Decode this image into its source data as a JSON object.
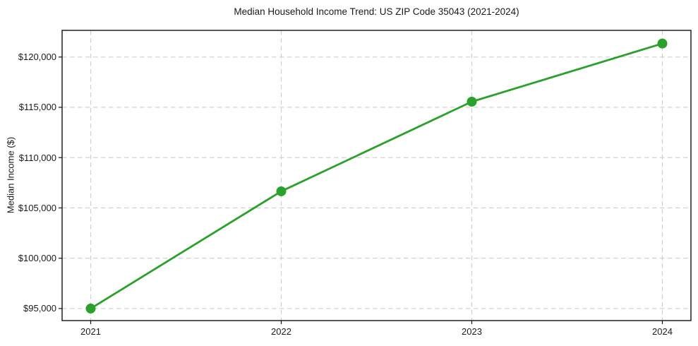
{
  "chart_data": {
    "type": "line",
    "title": "Median Household Income Trend: US ZIP Code 35043 (2021-2024)",
    "xlabel": "",
    "ylabel": "Median Income ($)",
    "x": [
      2021,
      2022,
      2023,
      2024
    ],
    "xtick_labels": [
      "2021",
      "2022",
      "2023",
      "2024"
    ],
    "series": [
      {
        "name": "Median Household Income",
        "values": [
          95000,
          106650,
          115560,
          121340
        ],
        "color": "#2ca02c",
        "marker": "circle"
      }
    ],
    "xlim": [
      2020.85,
      2024.15
    ],
    "ylim": [
      93800,
      122650
    ],
    "yticks": [
      95000,
      100000,
      105000,
      110000,
      115000,
      120000
    ],
    "ytick_labels": [
      "$95,000",
      "$100,000",
      "$105,000",
      "$110,000",
      "$115,000",
      "$120,000"
    ],
    "grid": "both",
    "grid_style": "dashed",
    "legend": "none",
    "colors": {
      "line": "#2ca02c",
      "grid": "#cdcdcd",
      "axes_border": "#111111",
      "text": "#1a1a1a",
      "background": "#ffffff"
    }
  }
}
